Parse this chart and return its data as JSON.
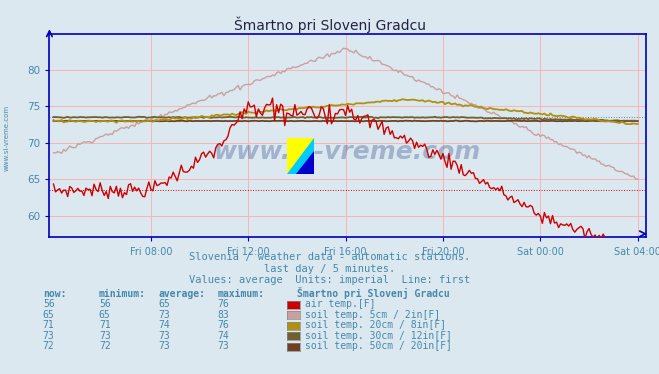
{
  "title": "Šmartno pri Slovenj Gradcu",
  "subtitle1": "Slovenia / weather data - automatic stations.",
  "subtitle2": "last day / 5 minutes.",
  "subtitle3": "Values: average  Units: imperial  Line: first",
  "background_color": "#dce8f0",
  "plot_bg_color": "#dce8f0",
  "ylim": [
    57,
    85
  ],
  "yticks": [
    60,
    65,
    70,
    75,
    80
  ],
  "xtick_labels": [
    "Fri 08:00",
    "Fri 12:00",
    "Fri 16:00",
    "Fri 20:00",
    "Sat 00:00",
    "Sat 04:00"
  ],
  "xtick_positions": [
    48,
    96,
    144,
    192,
    240,
    288
  ],
  "colors": {
    "air_temp": "#cc0000",
    "soil_5cm": "#c8a0a0",
    "soil_20cm": "#b09010",
    "soil_30cm": "#706030",
    "soil_50cm": "#704020"
  },
  "table_rows": [
    [
      56,
      56,
      65,
      76,
      "air temp.[F]",
      "#cc0000"
    ],
    [
      65,
      65,
      73,
      83,
      "soil temp. 5cm / 2in[F]",
      "#c8a0a0"
    ],
    [
      71,
      71,
      74,
      76,
      "soil temp. 20cm / 8in[F]",
      "#b09010"
    ],
    [
      73,
      73,
      73,
      74,
      "soil temp. 30cm / 12in[F]",
      "#706030"
    ],
    [
      72,
      72,
      73,
      73,
      "soil temp. 50cm / 20in[F]",
      "#704020"
    ]
  ],
  "watermark": "www.si-vreme.com",
  "axis_color": "#0000bb",
  "grid_color": "#ffaaaa",
  "text_color": "#4488aa",
  "title_color": "#222244"
}
